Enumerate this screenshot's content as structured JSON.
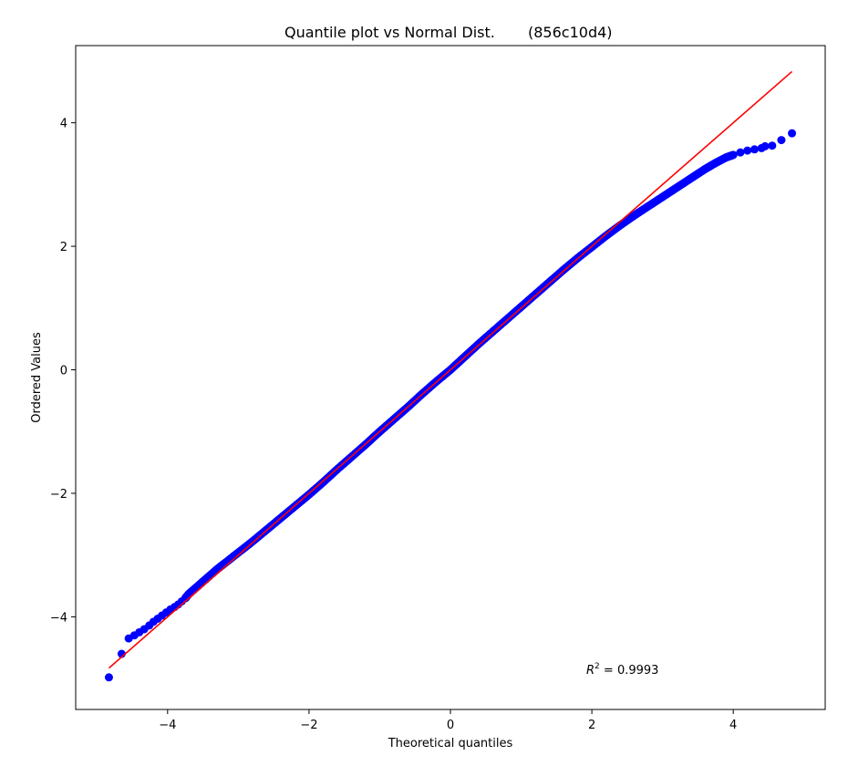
{
  "chart_data": {
    "type": "scatter",
    "title": "Quantile plot vs Normal Dist.",
    "title_suffix": "(856c10d4)",
    "xlabel": "Theoretical quantiles",
    "ylabel": "Ordered Values",
    "xlim": [
      -5.3,
      5.3
    ],
    "ylim": [
      -5.5,
      5.25
    ],
    "xticks": [
      -4,
      -2,
      0,
      2,
      4
    ],
    "xtick_labels": [
      "−4",
      "−2",
      "0",
      "2",
      "4"
    ],
    "yticks": [
      -4,
      -2,
      0,
      2,
      4
    ],
    "ytick_labels": [
      "−4",
      "−2",
      "0",
      "2",
      "4"
    ],
    "grid": false,
    "annotation": {
      "prefix": "R",
      "superscript": "2",
      "text": " = 0.9993"
    },
    "series": [
      {
        "kind": "points",
        "color": "#0000ff",
        "x": [
          -4.83,
          -4.65,
          -4.55,
          -4.47,
          -4.4,
          -4.33,
          -4.26,
          -4.2,
          -4.14,
          -4.08,
          -4.02,
          -3.96,
          -3.9,
          -3.85,
          -3.8,
          -3.75,
          -3.7,
          -3.6,
          -3.5,
          -3.4,
          -3.3,
          -3.2,
          -3.0,
          -2.8,
          -2.6,
          -2.4,
          -2.2,
          -2.0,
          -1.8,
          -1.6,
          -1.4,
          -1.2,
          -1.0,
          -0.8,
          -0.6,
          -0.4,
          -0.2,
          0.0,
          0.2,
          0.4,
          0.6,
          0.8,
          1.0,
          1.2,
          1.4,
          1.6,
          1.8,
          2.0,
          2.2,
          2.4,
          2.6,
          2.8,
          3.0,
          3.2,
          3.4,
          3.6,
          3.75,
          3.9,
          4.0,
          4.1,
          4.2,
          4.3,
          4.4,
          4.45,
          4.55,
          4.68,
          4.83
        ],
        "y": [
          -4.98,
          -4.6,
          -4.35,
          -4.3,
          -4.25,
          -4.2,
          -4.14,
          -4.08,
          -4.03,
          -3.98,
          -3.93,
          -3.88,
          -3.84,
          -3.8,
          -3.75,
          -3.7,
          -3.63,
          -3.53,
          -3.43,
          -3.33,
          -3.23,
          -3.14,
          -2.96,
          -2.78,
          -2.59,
          -2.4,
          -2.21,
          -2.02,
          -1.82,
          -1.61,
          -1.41,
          -1.21,
          -1.0,
          -0.8,
          -0.6,
          -0.39,
          -0.19,
          0.0,
          0.21,
          0.42,
          0.62,
          0.82,
          1.02,
          1.22,
          1.42,
          1.62,
          1.81,
          1.99,
          2.17,
          2.34,
          2.5,
          2.65,
          2.8,
          2.95,
          3.1,
          3.25,
          3.35,
          3.44,
          3.48,
          3.52,
          3.55,
          3.57,
          3.59,
          3.62,
          3.63,
          3.72,
          3.83
        ]
      },
      {
        "kind": "fit-line",
        "color": "#ff0000",
        "x": [
          -4.83,
          4.83
        ],
        "y": [
          -4.83,
          4.83
        ]
      }
    ]
  }
}
